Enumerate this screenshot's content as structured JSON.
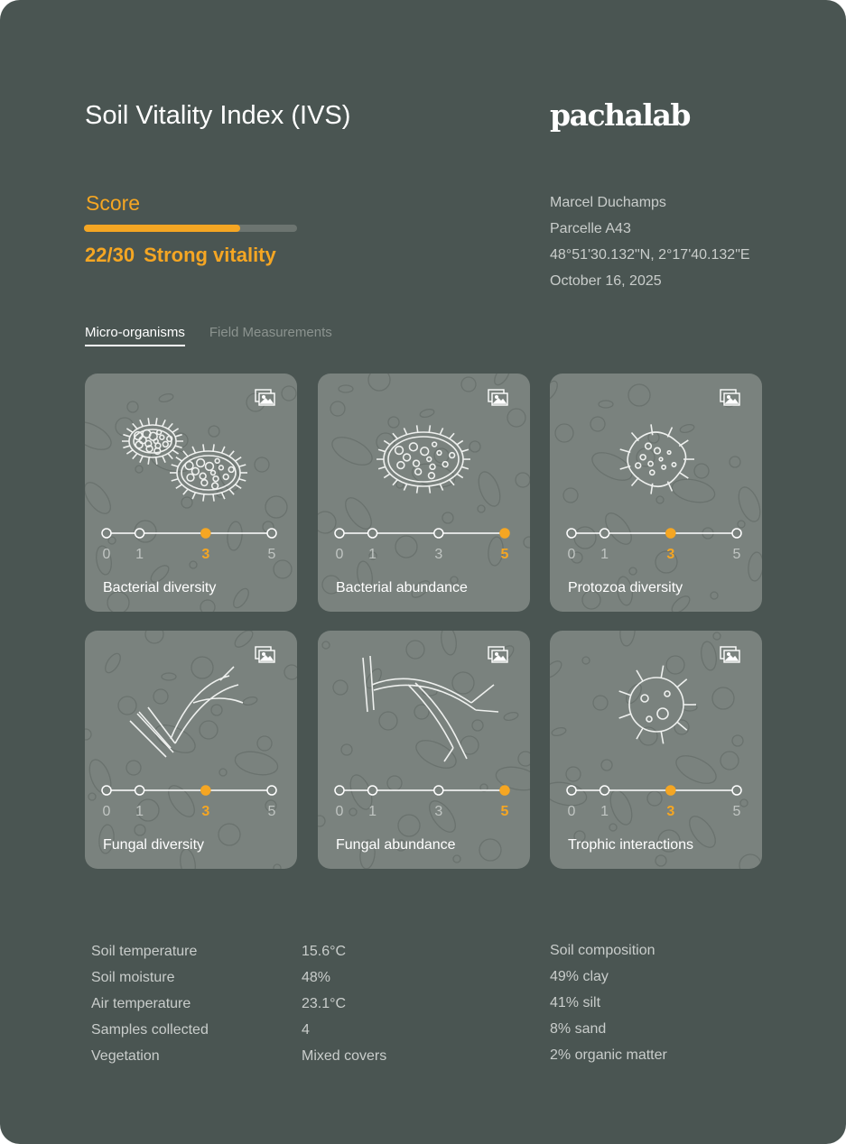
{
  "header": {
    "title": "Soil Vitality Index (IVS)",
    "logo": "pachalab"
  },
  "score": {
    "label": "Score",
    "value": "22/30",
    "max": 30,
    "current": 22,
    "fraction": 0.7333,
    "verdict": "Strong vitality",
    "accent": "#f5a623"
  },
  "info": {
    "name": "Marcel Duchamps",
    "parcel": "Parcelle A43",
    "coords": "48°51'30.132\"N, 2°17'40.132\"E",
    "date": "October 16, 2025"
  },
  "tabs": [
    {
      "label": "Micro-organisms",
      "active": true
    },
    {
      "label": "Field Measurements",
      "active": false
    }
  ],
  "cards": [
    {
      "name": "Bacterial diversity",
      "value": 3,
      "ticks": [
        "0",
        "1",
        "3",
        "5"
      ],
      "illustration": "two-bacteria"
    },
    {
      "name": "Bacterial abundance",
      "value": 5,
      "ticks": [
        "0",
        "1",
        "3",
        "5"
      ],
      "illustration": "bacterium"
    },
    {
      "name": "Protozoa diversity",
      "value": 3,
      "ticks": [
        "0",
        "1",
        "3",
        "5"
      ],
      "illustration": "protozoa"
    },
    {
      "name": "Fungal diversity",
      "value": 3,
      "ticks": [
        "0",
        "1",
        "3",
        "5"
      ],
      "illustration": "fungal-hyphae"
    },
    {
      "name": "Fungal abundance",
      "value": 5,
      "ticks": [
        "0",
        "1",
        "3",
        "5"
      ],
      "illustration": "fungal-network"
    },
    {
      "name": "Trophic interactions",
      "value": 3,
      "ticks": [
        "0",
        "1",
        "3",
        "5"
      ],
      "illustration": "virus"
    }
  ],
  "measurements": [
    {
      "label": "Soil temperature",
      "value": "15.6°C"
    },
    {
      "label": "Soil moisture",
      "value": "48%"
    },
    {
      "label": "Air temperature",
      "value": "23.1°C"
    },
    {
      "label": "Samples collected",
      "value": "4"
    },
    {
      "label": "Vegetation",
      "value": "Mixed covers"
    }
  ],
  "composition": {
    "title": "Soil composition",
    "items": [
      "49% clay",
      "41% silt",
      "8% sand",
      "2% organic matter"
    ]
  },
  "icons": {
    "card_gallery": "gallery-icon"
  }
}
